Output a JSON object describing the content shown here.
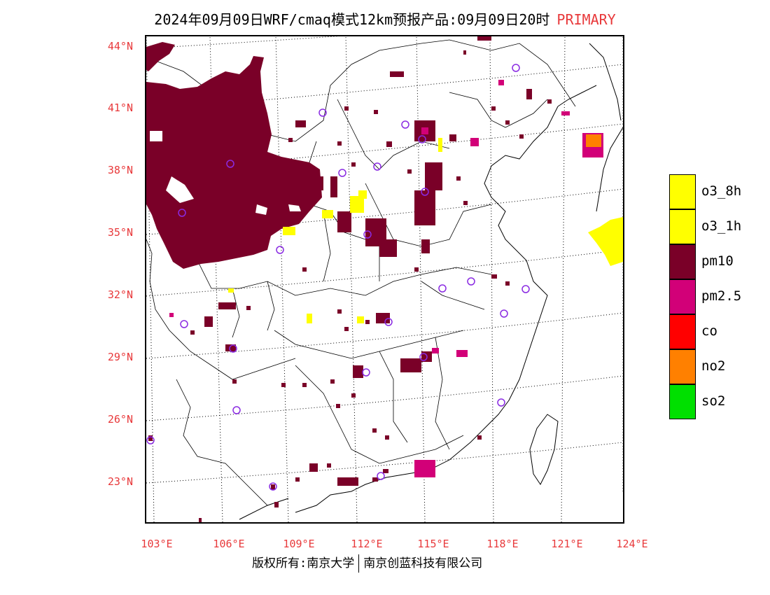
{
  "title": {
    "main": "2024年09月09日WRF/cmaq模式12km预报产品:09月09日20时",
    "tag": "PRIMARY"
  },
  "axes": {
    "lat_labels": [
      "44°N",
      "41°N",
      "38°N",
      "35°N",
      "32°N",
      "29°N",
      "26°N",
      "23°N"
    ],
    "lon_labels": [
      "103°E",
      "106°E",
      "109°E",
      "112°E",
      "115°E",
      "118°E",
      "121°E",
      "124°E"
    ]
  },
  "legend": {
    "items": [
      {
        "label": "o3_8h",
        "color": "#ffff00"
      },
      {
        "label": "o3_1h",
        "color": "#ffff00"
      },
      {
        "label": "pm10",
        "color": "#7a0028"
      },
      {
        "label": "pm2.5",
        "color": "#d20078"
      },
      {
        "label": "co",
        "color": "#ff0000"
      },
      {
        "label": "no2",
        "color": "#ff8000"
      },
      {
        "label": "so2",
        "color": "#00e000"
      }
    ]
  },
  "footer": {
    "left": "版权所有:南京大学",
    "right": "南京创蓝科技有限公司"
  },
  "colors": {
    "axis_label": "#e8393b",
    "station_marker": "#8a2be2"
  }
}
